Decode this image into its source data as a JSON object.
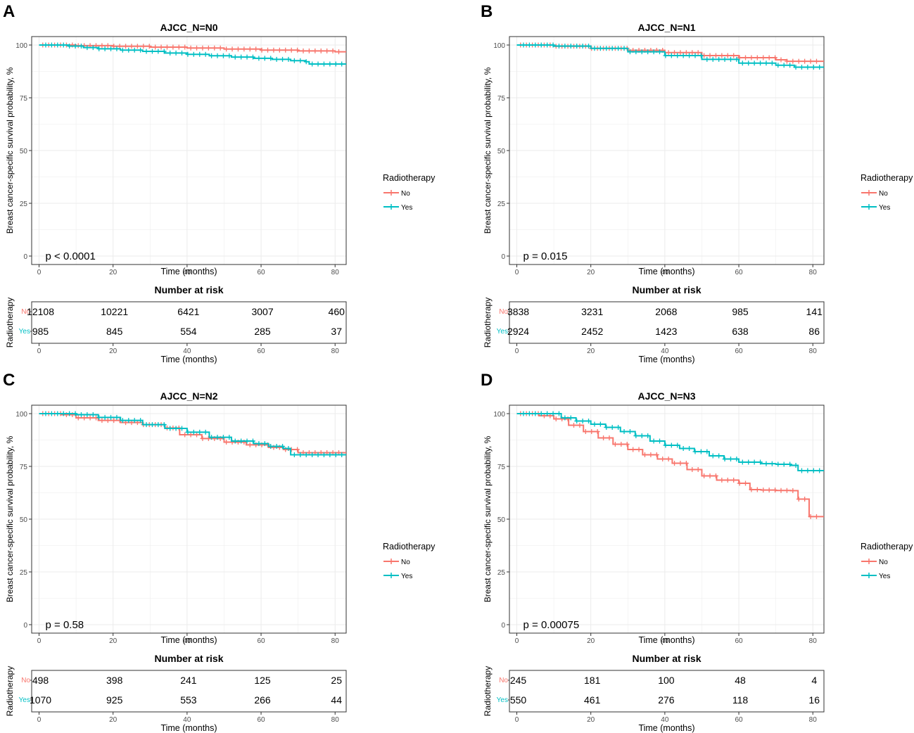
{
  "figure": {
    "colors": {
      "no": "#F8766D",
      "yes": "#00BFC4",
      "grid": "#EBEBEB",
      "axis": "#333333",
      "tick_text": "#4D4D4D"
    },
    "legend_title": "Radiotherapy",
    "legend_items": [
      "No",
      "Yes"
    ],
    "risk_title": "Number at risk",
    "risk_ylabel": "Radiotherapy",
    "risk_row_labels": [
      "No",
      "Yes"
    ]
  },
  "chart_data": [
    {
      "panel": "A",
      "type": "line",
      "title": "AJCC_N=N0",
      "xlabel": "Time (months)",
      "ylabel": "Breast cancer-specific survival probability, %",
      "xlim": [
        -2,
        83
      ],
      "ylim": [
        -4,
        104
      ],
      "xticks": [
        0,
        20,
        40,
        60,
        80
      ],
      "yticks": [
        0,
        25,
        50,
        75,
        100
      ],
      "pvalue": "p < 0.0001",
      "series": [
        {
          "name": "No",
          "x": [
            0,
            10,
            20,
            30,
            40,
            50,
            60,
            70,
            80,
            83
          ],
          "y": [
            100,
            99.7,
            99.4,
            99.0,
            98.6,
            98.1,
            97.6,
            97.2,
            96.8,
            96.8
          ]
        },
        {
          "name": "Yes",
          "x": [
            0,
            8,
            12,
            16,
            22,
            28,
            34,
            40,
            46,
            52,
            58,
            63,
            68,
            72,
            73,
            83
          ],
          "y": [
            100,
            99.5,
            98.8,
            98.2,
            97.6,
            97.0,
            96.2,
            95.6,
            94.9,
            94.3,
            93.7,
            93.2,
            92.6,
            92.1,
            91.0,
            91.0
          ]
        }
      ],
      "risk_times": [
        0,
        20,
        40,
        60,
        80
      ],
      "risk_table": {
        "No": [
          12108,
          10221,
          6421,
          3007,
          460
        ],
        "Yes": [
          985,
          845,
          554,
          285,
          37
        ]
      }
    },
    {
      "panel": "B",
      "type": "line",
      "title": "AJCC_N=N1",
      "xlabel": "Time (months)",
      "ylabel": "Breast cancer-specific survival probability, %",
      "xlim": [
        -2,
        83
      ],
      "ylim": [
        -4,
        104
      ],
      "xticks": [
        0,
        20,
        40,
        60,
        80
      ],
      "yticks": [
        0,
        25,
        50,
        75,
        100
      ],
      "pvalue": "p = 0.015",
      "series": [
        {
          "name": "No",
          "x": [
            0,
            10,
            20,
            30,
            40,
            50,
            60,
            70,
            73,
            83
          ],
          "y": [
            100,
            99.4,
            98.4,
            97.5,
            96.4,
            95.0,
            94.0,
            93.0,
            92.3,
            92.3
          ]
        },
        {
          "name": "Yes",
          "x": [
            0,
            10,
            20,
            30,
            40,
            50,
            60,
            70,
            75,
            83
          ],
          "y": [
            100,
            99.5,
            98.4,
            96.8,
            95.0,
            93.2,
            91.4,
            90.4,
            89.5,
            89.5
          ]
        }
      ],
      "risk_times": [
        0,
        20,
        40,
        60,
        80
      ],
      "risk_table": {
        "No": [
          3838,
          3231,
          2068,
          985,
          141
        ],
        "Yes": [
          2924,
          2452,
          1423,
          638,
          86
        ]
      }
    },
    {
      "panel": "C",
      "type": "line",
      "title": "AJCC_N=N2",
      "xlabel": "Time (months)",
      "ylabel": "Breast cancer-specific survival probability, %",
      "xlim": [
        -2,
        83
      ],
      "ylim": [
        -4,
        104
      ],
      "xticks": [
        0,
        20,
        40,
        60,
        80
      ],
      "yticks": [
        0,
        25,
        50,
        75,
        100
      ],
      "pvalue": "p = 0.58",
      "series": [
        {
          "name": "No",
          "x": [
            0,
            6,
            10,
            16,
            22,
            28,
            34,
            38,
            44,
            50,
            56,
            62,
            66,
            70,
            83
          ],
          "y": [
            100,
            99.5,
            98.0,
            96.8,
            95.8,
            94.8,
            93.2,
            90.0,
            88.2,
            86.5,
            85.2,
            84.0,
            83.0,
            81.5,
            81.5
          ]
        },
        {
          "name": "Yes",
          "x": [
            0,
            10,
            16,
            22,
            28,
            34,
            40,
            46,
            52,
            58,
            62,
            66,
            68,
            83
          ],
          "y": [
            100,
            99.5,
            98.2,
            96.8,
            94.8,
            93.0,
            91.2,
            88.8,
            87.0,
            85.8,
            84.5,
            83.5,
            80.5,
            80.5
          ]
        }
      ],
      "risk_times": [
        0,
        20,
        40,
        60,
        80
      ],
      "risk_table": {
        "No": [
          498,
          398,
          241,
          125,
          25
        ],
        "Yes": [
          1070,
          925,
          553,
          266,
          44
        ]
      }
    },
    {
      "panel": "D",
      "type": "line",
      "title": "AJCC_N=N3",
      "xlabel": "Time (months)",
      "ylabel": "Breast cancer-specific survival probability, %",
      "xlim": [
        -2,
        83
      ],
      "ylim": [
        -4,
        104
      ],
      "xticks": [
        0,
        20,
        40,
        60,
        80
      ],
      "yticks": [
        0,
        25,
        50,
        75,
        100
      ],
      "pvalue": "p = 0.00075",
      "series": [
        {
          "name": "No",
          "x": [
            0,
            6,
            10,
            14,
            18,
            22,
            26,
            30,
            34,
            38,
            42,
            46,
            50,
            54,
            60,
            63,
            66,
            70,
            74,
            76,
            79,
            83
          ],
          "y": [
            100,
            99.0,
            97.5,
            94.5,
            91.5,
            88.5,
            85.5,
            83.0,
            80.5,
            78.5,
            76.5,
            73.5,
            70.5,
            68.5,
            67.0,
            64.0,
            63.8,
            63.6,
            63.5,
            59.5,
            51.2,
            51.2
          ]
        },
        {
          "name": "Yes",
          "x": [
            0,
            12,
            16,
            20,
            24,
            28,
            32,
            36,
            40,
            44,
            48,
            52,
            56,
            60,
            66,
            70,
            74,
            76,
            83
          ],
          "y": [
            100,
            98.0,
            96.5,
            95.0,
            93.5,
            91.5,
            89.5,
            87.0,
            85.0,
            83.5,
            82.0,
            80.0,
            78.5,
            77.0,
            76.3,
            76.0,
            75.5,
            73.0,
            73.0
          ]
        }
      ],
      "risk_times": [
        0,
        20,
        40,
        60,
        80
      ],
      "risk_table": {
        "No": [
          245,
          181,
          100,
          48,
          4
        ],
        "Yes": [
          550,
          461,
          276,
          118,
          16
        ]
      }
    }
  ]
}
